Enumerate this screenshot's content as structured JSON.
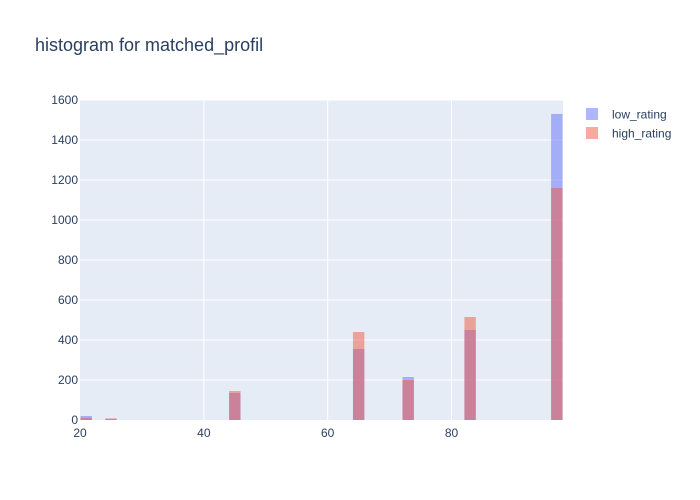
{
  "chart_data": {
    "type": "bar",
    "title": "histogram for matched_profil",
    "xlabel": "",
    "ylabel": "",
    "xlim": [
      20,
      98
    ],
    "ylim": [
      0,
      1600
    ],
    "x_ticks": [
      20,
      40,
      60,
      80
    ],
    "y_ticks": [
      0,
      200,
      400,
      600,
      800,
      1000,
      1200,
      1400,
      1600
    ],
    "bin_width": 2,
    "grid": true,
    "legend_position": "top-right",
    "colors": {
      "plot_bg": "#e5ecf6",
      "grid": "#ffffff",
      "low_rating": "#636efa",
      "high_rating": "#ef553b",
      "text": "#2a3f5f"
    },
    "series": [
      {
        "name": "low_rating",
        "bins": [
          {
            "x": 21,
            "value": 20
          },
          {
            "x": 25,
            "value": 5
          },
          {
            "x": 45,
            "value": 135
          },
          {
            "x": 65,
            "value": 355
          },
          {
            "x": 73,
            "value": 215
          },
          {
            "x": 83,
            "value": 450
          },
          {
            "x": 97,
            "value": 1530
          }
        ]
      },
      {
        "name": "high_rating",
        "bins": [
          {
            "x": 21,
            "value": 10
          },
          {
            "x": 25,
            "value": 8
          },
          {
            "x": 45,
            "value": 145
          },
          {
            "x": 65,
            "value": 440
          },
          {
            "x": 73,
            "value": 200
          },
          {
            "x": 83,
            "value": 515
          },
          {
            "x": 97,
            "value": 1160
          }
        ]
      }
    ]
  }
}
